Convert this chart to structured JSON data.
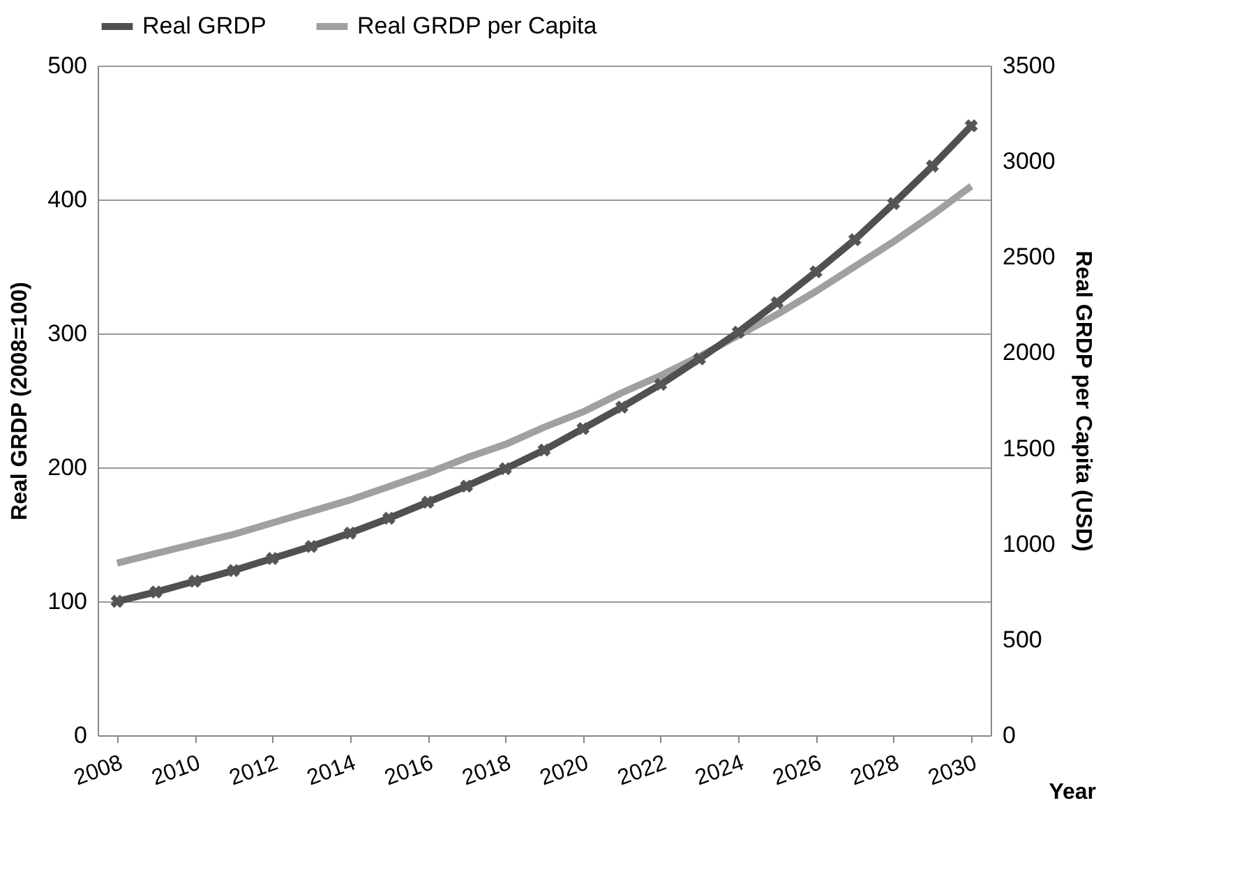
{
  "chart_data": {
    "type": "line",
    "xlabel": "Year",
    "ylabel": "Real GRDP (2008=100)",
    "y2label": "Real GRDP per Capita (USD)",
    "x": [
      2008,
      2009,
      2010,
      2011,
      2012,
      2013,
      2014,
      2015,
      2016,
      2017,
      2018,
      2019,
      2020,
      2021,
      2022,
      2023,
      2024,
      2025,
      2026,
      2027,
      2028,
      2029,
      2030
    ],
    "series": [
      {
        "name": "Real GRDP",
        "color": "#505050",
        "marker": "cross",
        "values": [
          100,
          107,
          115,
          123,
          132,
          141,
          151,
          162,
          174,
          186,
          199,
          213,
          229,
          245,
          262,
          281,
          301,
          323,
          346,
          370,
          397,
          425,
          455
        ]
      },
      {
        "name": "Real GRDP per Capita",
        "color": "#a0a0a0",
        "axis": "y2",
        "values": [
          900,
          950,
          1000,
          1050,
          1110,
          1170,
          1230,
          1300,
          1370,
          1450,
          1520,
          1610,
          1690,
          1790,
          1880,
          1980,
          2090,
          2200,
          2320,
          2450,
          2580,
          2720,
          2870
        ]
      }
    ],
    "xlim": [
      2007.5,
      2030.5
    ],
    "xticks": [
      2008,
      2010,
      2012,
      2014,
      2016,
      2018,
      2020,
      2022,
      2024,
      2026,
      2028,
      2030
    ],
    "ylim": [
      0,
      500
    ],
    "yticks": [
      0,
      100,
      200,
      300,
      400,
      500
    ],
    "y2lim": [
      0,
      3500
    ],
    "y2ticks": [
      0,
      500,
      1000,
      1500,
      2000,
      2500,
      3000,
      3500
    ],
    "grid": "y",
    "legend": "top",
    "line_style": "solid"
  }
}
